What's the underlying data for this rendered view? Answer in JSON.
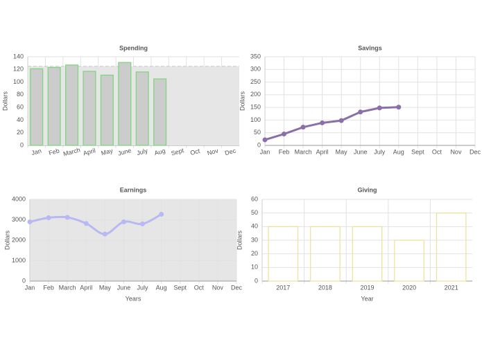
{
  "chart_data": [
    {
      "type": "bar",
      "title": "Spending",
      "y_label": "Dollars",
      "categories": [
        "Jan",
        "Feb",
        "March",
        "April",
        "May",
        "June",
        "July",
        "Aug",
        "Sept",
        "Oct",
        "Nov",
        "Dec"
      ],
      "ylim": [
        0,
        140
      ],
      "yticks": [
        0,
        20,
        40,
        60,
        80,
        100,
        120,
        140
      ],
      "grid": true,
      "rotate_labels": true,
      "series": [
        {
          "type": "area",
          "color": "#e6e6e6",
          "line_color": "#cfcfcf",
          "values": [
            125,
            125,
            125,
            125,
            125,
            125,
            125,
            125,
            125,
            125,
            125,
            125
          ]
        },
        {
          "type": "bar",
          "color": "#cccccc",
          "edge_color": "#7fd67f",
          "values": [
            121,
            123,
            127,
            117,
            111,
            131,
            116,
            105,
            null,
            null,
            null,
            null
          ]
        }
      ]
    },
    {
      "type": "line",
      "title": "Savings",
      "y_label": "Dollars",
      "categories": [
        "Jan",
        "Feb",
        "March",
        "April",
        "May",
        "June",
        "July",
        "Aug",
        "Sept",
        "Oct",
        "Nov",
        "Dec"
      ],
      "ylim": [
        0,
        350
      ],
      "yticks": [
        0,
        50,
        100,
        150,
        200,
        250,
        300,
        350
      ],
      "grid": true,
      "series": [
        {
          "color": "#8a6fa8",
          "values": [
            22,
            45,
            72,
            89,
            98,
            132,
            148,
            151,
            null,
            null,
            null,
            null
          ]
        }
      ]
    },
    {
      "type": "line",
      "title": "Earnings",
      "y_label": "Dollars",
      "x_label": "Years",
      "smooth": true,
      "background": "#e6e6e6",
      "categories": [
        "Jan",
        "Feb",
        "March",
        "April",
        "May",
        "June",
        "July",
        "Aug",
        "Sept",
        "Oct",
        "Nov",
        "Dec"
      ],
      "ylim": [
        0,
        4000
      ],
      "yticks": [
        0,
        1000,
        2000,
        3000,
        4000
      ],
      "grid": true,
      "series": [
        {
          "color": "#b8b8f2",
          "values": [
            2900,
            3100,
            3120,
            2820,
            2300,
            2900,
            2800,
            3270,
            null,
            null,
            null,
            null
          ]
        }
      ]
    },
    {
      "type": "bar",
      "title": "Giving",
      "y_label": "Dollars",
      "x_label": "Year",
      "categories": [
        "2017",
        "2018",
        "2019",
        "2020",
        "2021"
      ],
      "ylim": [
        0,
        60
      ],
      "yticks": [
        0,
        10,
        20,
        30,
        40,
        50,
        60
      ],
      "grid": true,
      "series": [
        {
          "color": "none",
          "edge_color": "#eee2a0",
          "values": [
            40,
            40,
            40,
            30,
            50
          ]
        }
      ]
    }
  ]
}
